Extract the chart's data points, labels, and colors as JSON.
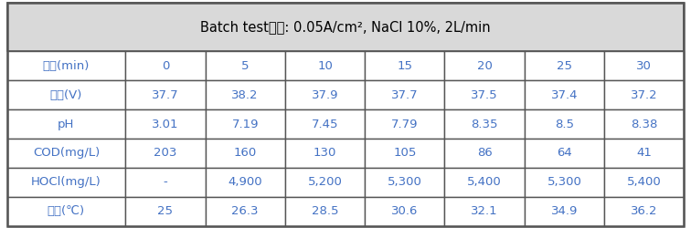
{
  "title": "Batch test조건: 0.05A/cm², NaCl 10%, 2L/min",
  "header_bg": "#d9d9d9",
  "row_label_bg": "#ffffff",
  "data_bg": "#ffffff",
  "border_color": "#555555",
  "text_color_blue": "#4472c4",
  "text_color_black": "#000000",
  "row_labels": [
    "시간(min)",
    "전압(V)",
    "pH",
    "COD(mg/L)",
    "HOCl(mg/L)",
    "온도(℃)"
  ],
  "col_headers": [
    "0",
    "5",
    "10",
    "15",
    "20",
    "25",
    "30"
  ],
  "data": [
    [
      "0",
      "5",
      "10",
      "15",
      "20",
      "25",
      "30"
    ],
    [
      "37.7",
      "38.2",
      "37.9",
      "37.7",
      "37.5",
      "37.4",
      "37.2"
    ],
    [
      "3.01",
      "7.19",
      "7.45",
      "7.79",
      "8.35",
      "8.5",
      "8.38"
    ],
    [
      "203",
      "160",
      "130",
      "105",
      "86",
      "64",
      "41"
    ],
    [
      "-",
      "4,900",
      "5,200",
      "5,300",
      "5,400",
      "5,300",
      "5,400"
    ],
    [
      "25",
      "26.3",
      "28.5",
      "30.6",
      "32.1",
      "34.9",
      "36.2"
    ]
  ],
  "figsize": [
    7.56,
    2.5
  ],
  "dpi": 100
}
